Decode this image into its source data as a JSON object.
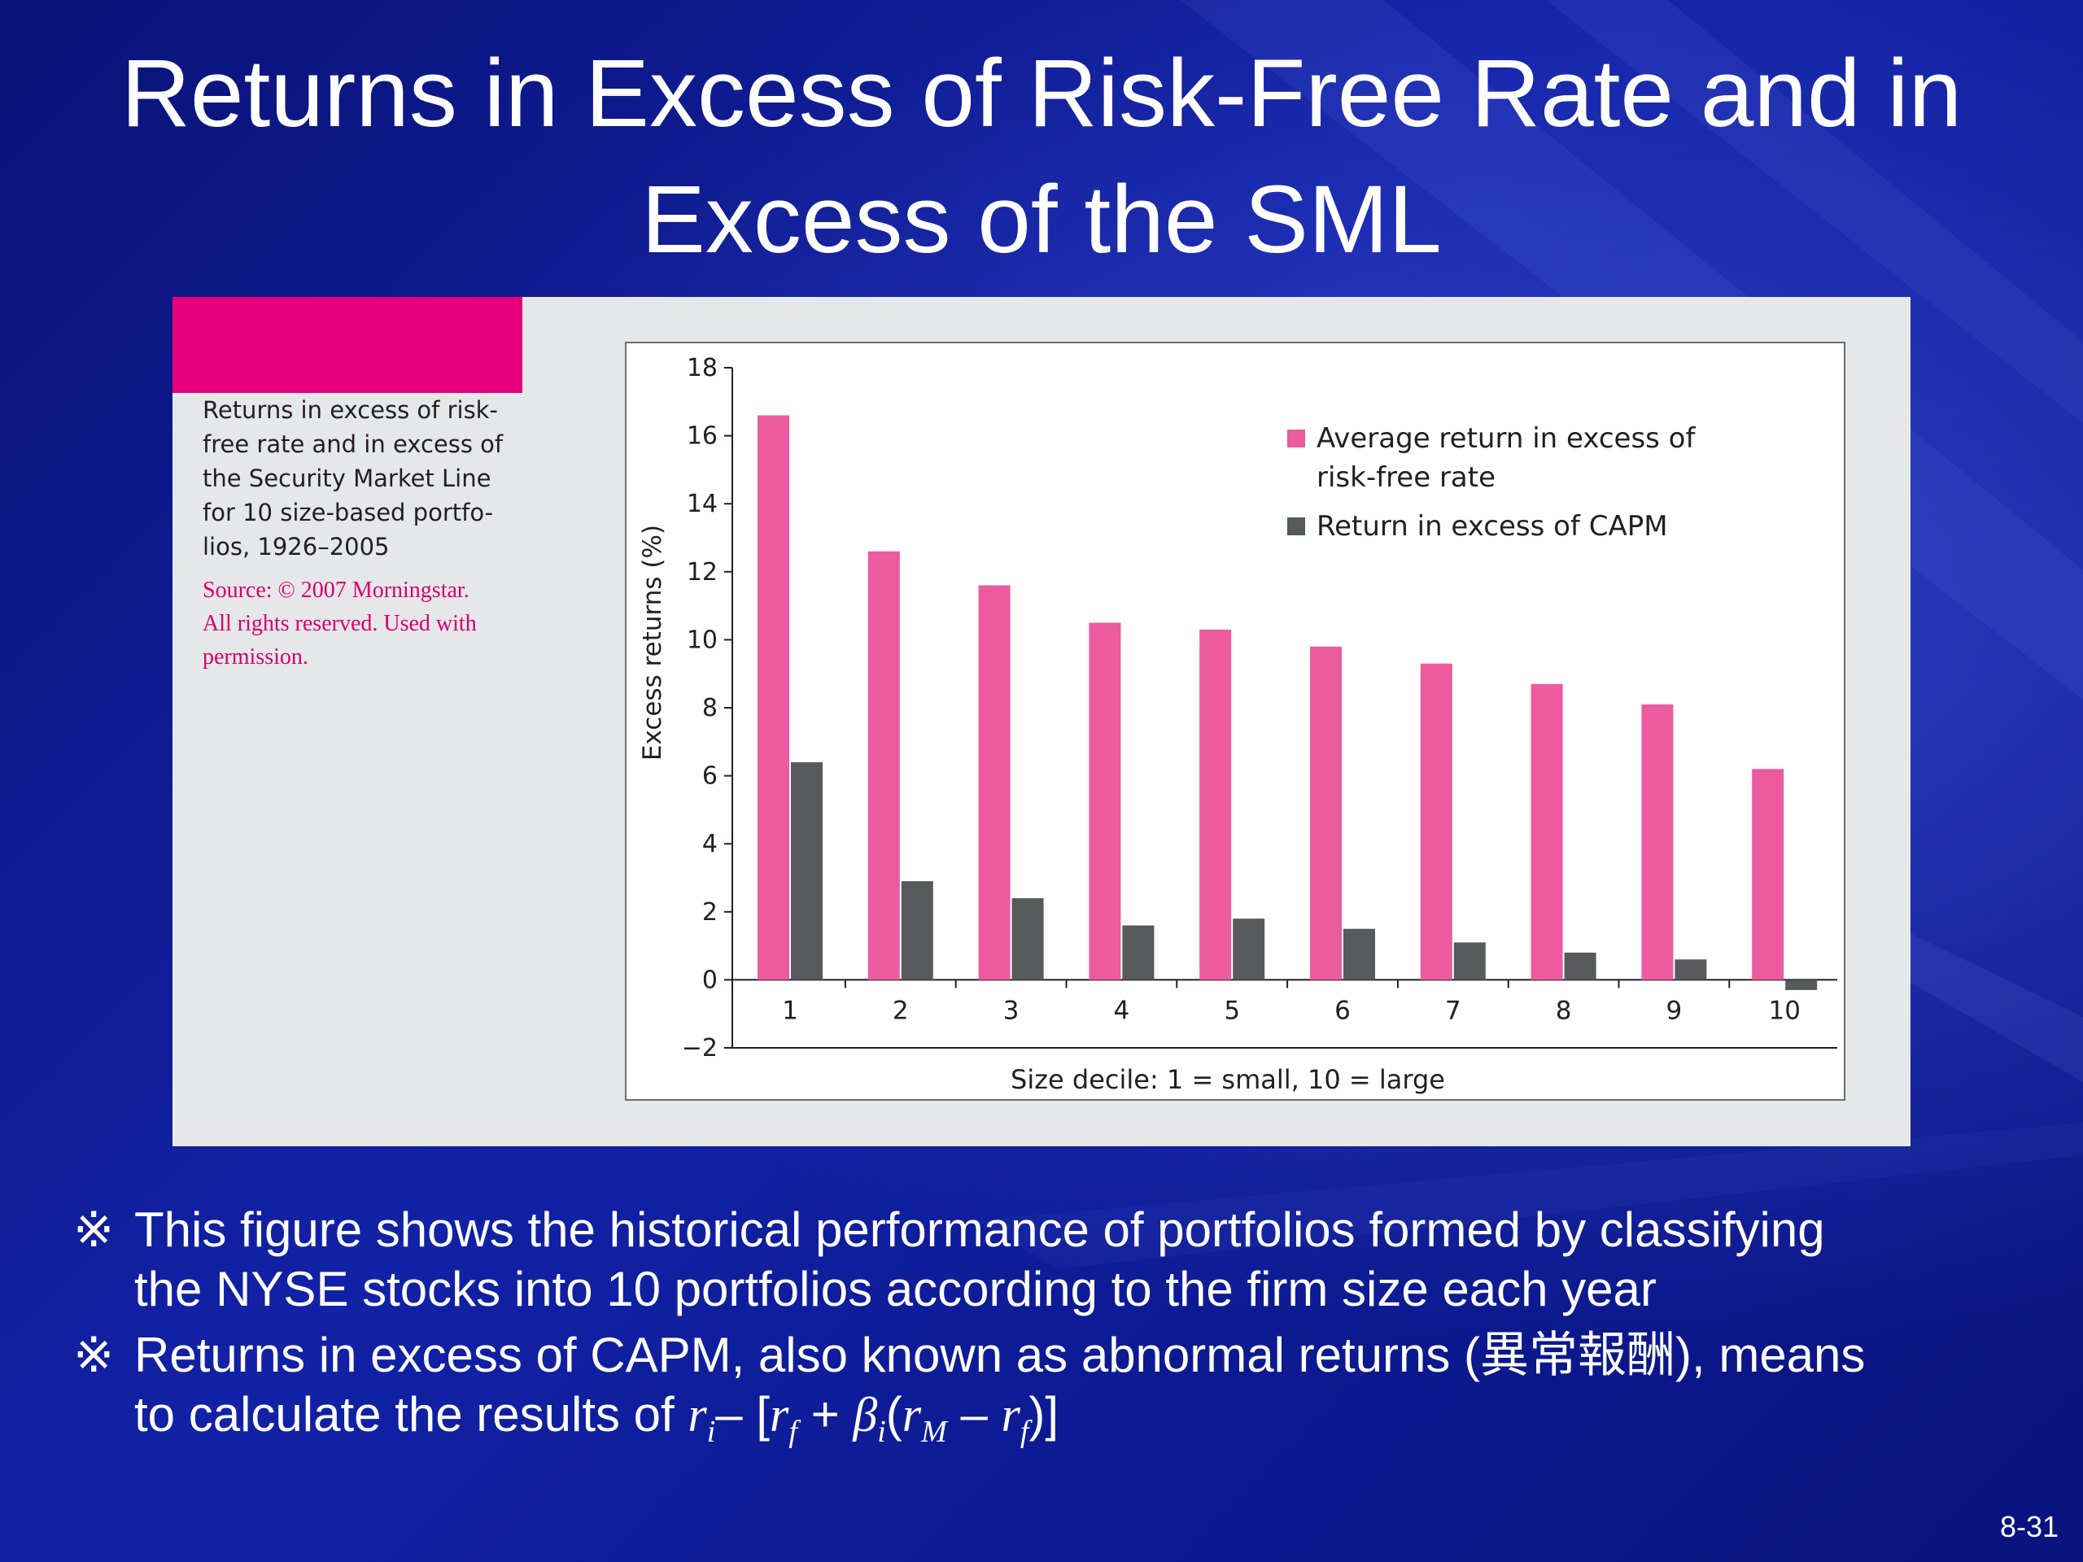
{
  "slide": {
    "title_lines": [
      "Returns in Excess of Risk-Free Rate and in",
      "Excess of the SML"
    ],
    "page_number": "8-31"
  },
  "figure": {
    "caption_lines": [
      "Returns in excess of risk-",
      "free rate and in excess of",
      "the Security Market Line",
      "for 10 size-based portfo-",
      "lios, 1926–2005"
    ],
    "source_lines": [
      "Source: © 2007 Morningstar.",
      "All rights reserved. Used with",
      "permission."
    ],
    "accent_color": "#e6007e"
  },
  "chart_data": {
    "type": "bar",
    "categories": [
      "1",
      "2",
      "3",
      "4",
      "5",
      "6",
      "7",
      "8",
      "9",
      "10"
    ],
    "series": [
      {
        "name": "Average return in excess of risk-free rate",
        "legend_lines": [
          "Average return in excess of",
          "risk-free rate"
        ],
        "color": "#ec5a9f",
        "values": [
          16.6,
          12.6,
          11.6,
          10.5,
          10.3,
          9.8,
          9.3,
          8.7,
          8.1,
          6.2
        ]
      },
      {
        "name": "Return in excess of CAPM",
        "legend_lines": [
          "Return in excess of CAPM"
        ],
        "color": "#58595b",
        "values": [
          6.4,
          2.9,
          2.4,
          1.6,
          1.8,
          1.5,
          1.1,
          0.8,
          0.6,
          -0.3
        ]
      }
    ],
    "xlabel": "Size decile: 1 = small, 10 = large",
    "ylabel": "Excess returns (%)",
    "ylim": [
      -2,
      18
    ],
    "yticks": [
      18,
      16,
      14,
      12,
      10,
      8,
      6,
      4,
      2,
      0,
      -2
    ],
    "ytick_labels": [
      "18",
      "16",
      "14",
      "12",
      "10",
      "8",
      "6",
      "4",
      "2",
      "0",
      "−2"
    ],
    "grid": false,
    "legend_position": "top-right"
  },
  "notes": {
    "marker": "※",
    "bullet1_lines": [
      "This figure shows the historical performance of portfolios formed by classifying",
      "the NYSE stocks into 10 portfolios according to the firm size each year"
    ],
    "bullet2_line1": "Returns in excess of CAPM, also known as abnormal returns (異常報酬), means",
    "bullet2_line2_prefix": "to calculate the results of ",
    "formula": {
      "r": "r",
      "i": "i",
      "dash": "– [",
      "f": "f",
      "plus": " + ",
      "beta": "β",
      "paren_open": "(",
      "M": "M",
      "minus": " – ",
      "close": ")]"
    }
  }
}
